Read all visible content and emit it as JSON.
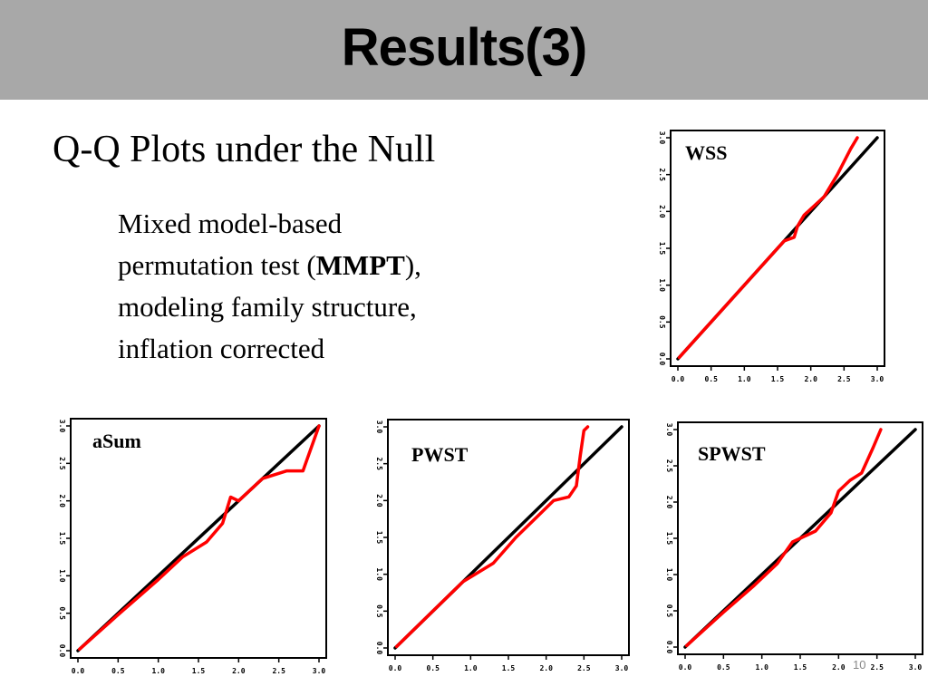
{
  "slide": {
    "title": "Results(3)",
    "subtitle": "Q-Q Plots under the Null",
    "description": {
      "line1": "Mixed model-based",
      "line2_pre": "permutation test (",
      "line2_bold": "MMPT",
      "line2_post": "),",
      "line3": "modeling family structure,",
      "line4": "inflation corrected"
    },
    "page_number": "10"
  },
  "colors": {
    "reference_line": "#000000",
    "qq_points": "#ff0000",
    "title_bar": "#a8a8a8"
  },
  "chart_data": [
    {
      "type": "line",
      "label": "WSS",
      "xlim": [
        0,
        3
      ],
      "ylim": [
        0,
        3
      ],
      "x_ticks": [
        "0.0",
        "0.5",
        "1.0",
        "1.5",
        "2.0",
        "2.5",
        "3.0"
      ],
      "y_ticks": [
        "0.0",
        "0.5",
        "1.0",
        "1.5",
        "2.0",
        "2.5",
        "3.0"
      ],
      "series": [
        {
          "role": "reference",
          "x": [
            0,
            3
          ],
          "y": [
            0,
            3
          ]
        },
        {
          "role": "qq",
          "x": [
            0.02,
            0.3,
            0.6,
            1.0,
            1.4,
            1.6,
            1.75,
            1.8,
            1.9,
            2.2,
            2.4,
            2.6,
            2.7
          ],
          "y": [
            0.02,
            0.3,
            0.6,
            1.0,
            1.4,
            1.6,
            1.65,
            1.8,
            1.95,
            2.2,
            2.5,
            2.85,
            3.0
          ]
        }
      ]
    },
    {
      "type": "line",
      "label": "aSum",
      "xlim": [
        0,
        3
      ],
      "ylim": [
        0,
        3
      ],
      "x_ticks": [
        "0.0",
        "0.5",
        "1.0",
        "1.5",
        "2.0",
        "2.5",
        "3.0"
      ],
      "y_ticks": [
        "0.0",
        "0.5",
        "1.0",
        "1.5",
        "2.0",
        "2.5",
        "3.0"
      ],
      "series": [
        {
          "role": "reference",
          "x": [
            0,
            3
          ],
          "y": [
            0,
            3
          ]
        },
        {
          "role": "qq",
          "x": [
            0.02,
            0.5,
            1.0,
            1.3,
            1.6,
            1.8,
            1.9,
            2.0,
            2.3,
            2.6,
            2.8,
            3.0
          ],
          "y": [
            0.02,
            0.48,
            0.95,
            1.25,
            1.45,
            1.7,
            2.05,
            2.0,
            2.3,
            2.4,
            2.4,
            3.0
          ]
        }
      ]
    },
    {
      "type": "line",
      "label": "PWST",
      "xlim": [
        0,
        3
      ],
      "ylim": [
        0,
        3
      ],
      "x_ticks": [
        "0.0",
        "0.5",
        "1.0",
        "1.5",
        "2.0",
        "2.5",
        "3.0"
      ],
      "y_ticks": [
        "0.0",
        "0.5",
        "1.0",
        "1.5",
        "2.0",
        "2.5",
        "3.0"
      ],
      "series": [
        {
          "role": "reference",
          "x": [
            0,
            3
          ],
          "y": [
            0,
            3
          ]
        },
        {
          "role": "qq",
          "x": [
            0.02,
            0.5,
            0.9,
            1.3,
            1.6,
            1.9,
            2.1,
            2.3,
            2.4,
            2.45,
            2.5,
            2.55
          ],
          "y": [
            0.02,
            0.5,
            0.9,
            1.15,
            1.5,
            1.8,
            2.0,
            2.05,
            2.2,
            2.6,
            2.95,
            3.0
          ]
        }
      ]
    },
    {
      "type": "line",
      "label": "SPWST",
      "xlim": [
        0,
        3
      ],
      "ylim": [
        0,
        3
      ],
      "x_ticks": [
        "0.0",
        "0.5",
        "1.0",
        "1.5",
        "2.0",
        "2.5",
        "3.0"
      ],
      "y_ticks": [
        "0.0",
        "0.5",
        "1.0",
        "1.5",
        "2.0",
        "2.5",
        "3.0"
      ],
      "series": [
        {
          "role": "reference",
          "x": [
            0,
            3
          ],
          "y": [
            0,
            3
          ]
        },
        {
          "role": "qq",
          "x": [
            0.02,
            0.5,
            0.9,
            1.2,
            1.4,
            1.6,
            1.7,
            1.9,
            2.0,
            2.15,
            2.3,
            2.45,
            2.55
          ],
          "y": [
            0.02,
            0.48,
            0.85,
            1.15,
            1.45,
            1.55,
            1.6,
            1.85,
            2.15,
            2.3,
            2.4,
            2.75,
            3.0
          ]
        }
      ]
    }
  ]
}
